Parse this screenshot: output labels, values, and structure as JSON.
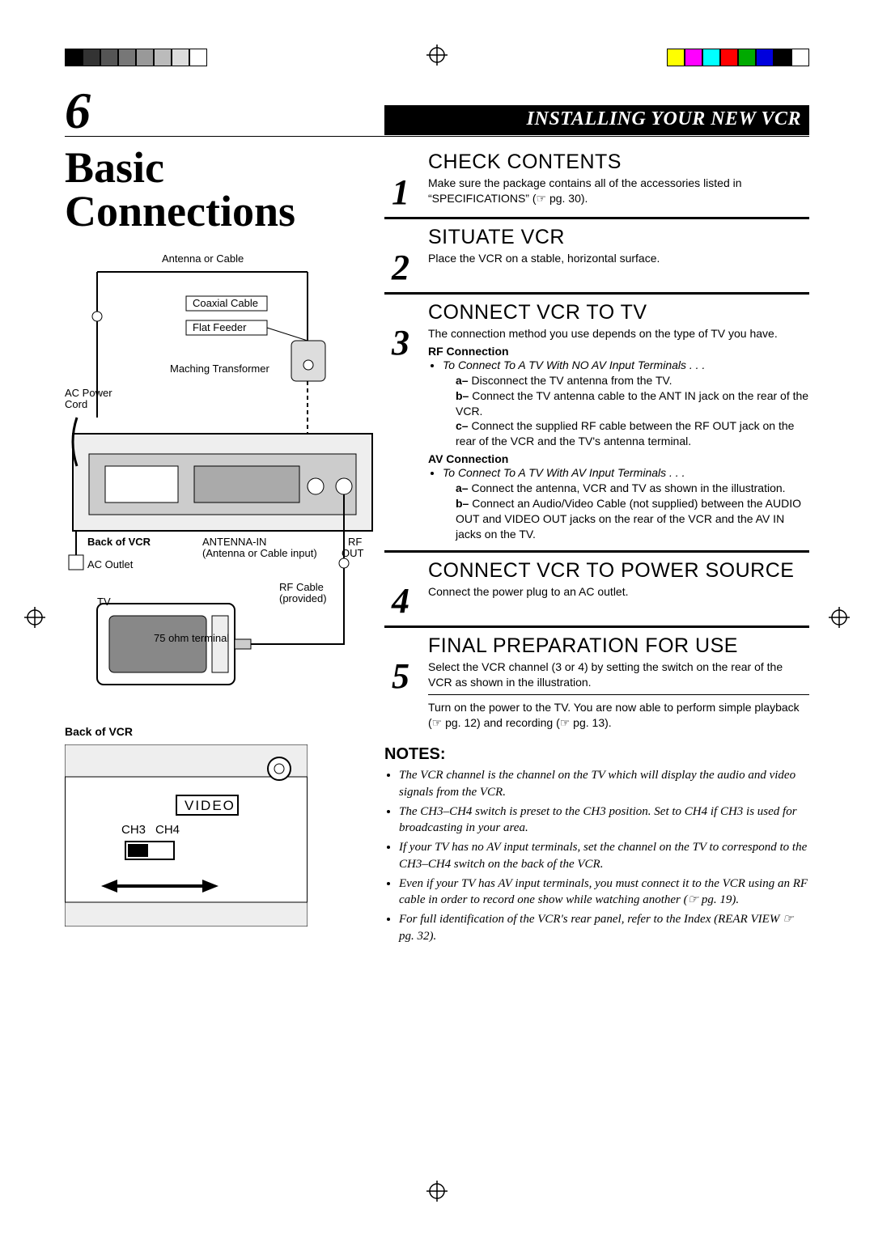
{
  "page_number": "6",
  "header": "INSTALLING YOUR NEW VCR",
  "title_line1": "Basic",
  "title_line2": "Connections",
  "colorbar_left": [
    "#000000",
    "#333333",
    "#555555",
    "#777777",
    "#999999",
    "#bbbbbb",
    "#dddddd",
    "#ffffff"
  ],
  "colorbar_right": [
    "#ffff00",
    "#ff00ff",
    "#00ffff",
    "#ff0000",
    "#00aa00",
    "#0000dd",
    "#000000",
    "#ffffff"
  ],
  "diagram1": {
    "labels": {
      "ant_cable": "Antenna or Cable",
      "coax": "Coaxial Cable",
      "flat": "Flat Feeder",
      "xformer": "Maching Transformer",
      "ac_cord1": "AC Power",
      "ac_cord2": "Cord",
      "back": "Back of VCR",
      "ac_outlet": "AC Outlet",
      "ant_in1": "ANTENNA-IN",
      "ant_in2": "(Antenna or Cable input)",
      "rf_out1": "RF",
      "rf_out2": "OUT",
      "tv": "TV",
      "rf_cable1": "RF Cable",
      "rf_cable2": "(provided)",
      "ohm": "75 ohm terminal"
    }
  },
  "diagram2": {
    "back": "Back of VCR",
    "video": "VIDEO",
    "ch3": "CH3",
    "ch4": "CH4"
  },
  "steps": [
    {
      "num": "1",
      "title": "CHECK CONTENTS",
      "text": "Make sure the package contains all of the accessories listed in “SPECIFICATIONS” (☞ pg. 30)."
    },
    {
      "num": "2",
      "title": "SITUATE VCR",
      "text": "Place the VCR on a stable, horizontal surface."
    },
    {
      "num": "3",
      "title": "CONNECT VCR TO TV",
      "text": "The connection method you use depends on the type of TV you have.",
      "rf_title": "RF Connection",
      "rf_lead": "To Connect To A TV With NO AV Input Terminals . . .",
      "rf_a": "Disconnect the TV antenna from the TV.",
      "rf_b": "Connect the TV antenna cable to the ANT IN jack on the rear of the VCR.",
      "rf_c": "Connect the supplied RF cable between the RF OUT jack on the rear of the VCR and the TV's antenna terminal.",
      "av_title": "AV Connection",
      "av_lead": "To Connect To A TV With AV Input Terminals . . .",
      "av_a": "Connect the antenna, VCR and TV as shown in the illustration.",
      "av_b": "Connect an Audio/Video Cable (not supplied) between the AUDIO OUT and VIDEO OUT jacks on the rear of the VCR and the AV IN jacks on the TV."
    },
    {
      "num": "4",
      "title": "CONNECT VCR TO POWER SOURCE",
      "text": "Connect the power plug to an AC outlet."
    },
    {
      "num": "5",
      "title": "FINAL PREPARATION FOR USE",
      "text": "Select the VCR channel (3 or 4) by setting the switch on the rear of the VCR as shown in the illustration.",
      "extra": "Turn on the power to the TV. You are now able to perform simple playback (☞ pg. 12) and recording (☞ pg. 13)."
    }
  ],
  "notes_title": "NOTES:",
  "notes": [
    "The VCR channel is the channel on the TV which will display the audio and video signals from the VCR.",
    "The CH3–CH4 switch is preset to the CH3 position. Set to CH4 if CH3 is used for broadcasting in your area.",
    "If your TV has no AV input terminals, set the channel on the TV to correspond to the CH3–CH4 switch on the back of the VCR.",
    "Even if your TV has AV input terminals, you must connect it to the VCR using an RF cable in order to record one show while watching another (☞ pg. 19).",
    "For full identification of the VCR's rear panel, refer to the Index (REAR VIEW ☞ pg. 32)."
  ]
}
